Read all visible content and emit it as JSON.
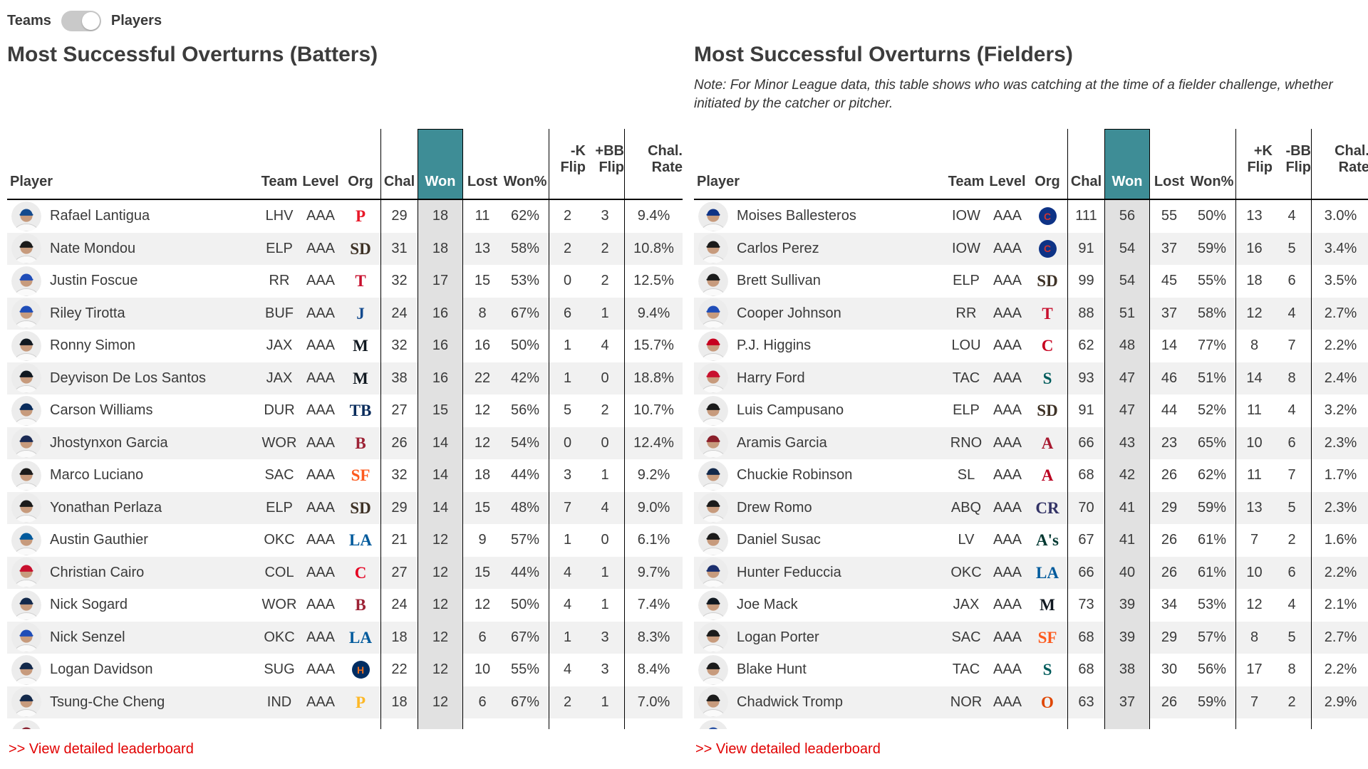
{
  "toggle": {
    "teams_label": "Teams",
    "players_label": "Players",
    "state": "Players"
  },
  "colors": {
    "accent_teal": "#3E8D96",
    "won_column_bg": "#E1E1E1",
    "row_stripe": "#F1F1F1",
    "link_red": "#E10000",
    "left_partial_row_cap": "#8A2432",
    "right_partial_row_cap": "#2D55A5"
  },
  "tables": [
    {
      "title": "Most Successful Overturns (Batters)",
      "note": "",
      "headers": {
        "player": "Player",
        "team": "Team",
        "level": "Level",
        "org": "Org",
        "chal": "Chal",
        "won": "Won",
        "lost": "Lost",
        "wonpct": "Won%",
        "f1a": "-K",
        "f1b": "Flip",
        "f2a": "+BB",
        "f2b": "Flip",
        "ratea": "Chal.",
        "rateb": "Rate"
      },
      "footer_link": ">> View detailed leaderboard",
      "partial_row_cap": "#8A2432",
      "rows": [
        {
          "player": "Rafael Lantigua",
          "team": "LHV",
          "level": "AAA",
          "org": "P",
          "org_color": "#E81828",
          "org_bg": null,
          "cap": "#134A8E",
          "chal": "29",
          "won": "18",
          "lost": "11",
          "wonpct": "62%",
          "f1": "2",
          "f2": "3",
          "rate": "9.4%"
        },
        {
          "player": "Nate Mondou",
          "team": "ELP",
          "level": "AAA",
          "org": "SD",
          "org_color": "#3E3226",
          "org_bg": null,
          "cap": "#1B1B1B",
          "chal": "31",
          "won": "18",
          "lost": "13",
          "wonpct": "58%",
          "f1": "2",
          "f2": "2",
          "rate": "10.8%"
        },
        {
          "player": "Justin Foscue",
          "team": "RR",
          "level": "AAA",
          "org": "T",
          "org_color": "#C8102E",
          "org_bg": null,
          "cap": "#1F4DB8",
          "chal": "32",
          "won": "17",
          "lost": "15",
          "wonpct": "53%",
          "f1": "0",
          "f2": "2",
          "rate": "12.5%"
        },
        {
          "player": "Riley Tirotta",
          "team": "BUF",
          "level": "AAA",
          "org": "J",
          "org_color": "#134A8E",
          "org_bg": null,
          "cap": "#1F4DB8",
          "chal": "24",
          "won": "16",
          "lost": "8",
          "wonpct": "67%",
          "f1": "6",
          "f2": "1",
          "rate": "9.4%"
        },
        {
          "player": "Ronny Simon",
          "team": "JAX",
          "level": "AAA",
          "org": "M",
          "org_color": "#101820",
          "org_bg": null,
          "cap": "#101820",
          "chal": "32",
          "won": "16",
          "lost": "16",
          "wonpct": "50%",
          "f1": "1",
          "f2": "4",
          "rate": "15.7%"
        },
        {
          "player": "Deyvison De Los Santos",
          "team": "JAX",
          "level": "AAA",
          "org": "M",
          "org_color": "#101820",
          "org_bg": null,
          "cap": "#101820",
          "chal": "38",
          "won": "16",
          "lost": "22",
          "wonpct": "42%",
          "f1": "1",
          "f2": "0",
          "rate": "18.8%"
        },
        {
          "player": "Carson Williams",
          "team": "DUR",
          "level": "AAA",
          "org": "TB",
          "org_color": "#092C5C",
          "org_bg": null,
          "cap": "#092C5C",
          "chal": "27",
          "won": "15",
          "lost": "12",
          "wonpct": "56%",
          "f1": "5",
          "f2": "2",
          "rate": "10.7%"
        },
        {
          "player": "Jhostynxon Garcia",
          "team": "WOR",
          "level": "AAA",
          "org": "B",
          "org_color": "#9D2235",
          "org_bg": null,
          "cap": "#1B2B55",
          "chal": "26",
          "won": "14",
          "lost": "12",
          "wonpct": "54%",
          "f1": "0",
          "f2": "0",
          "rate": "12.4%"
        },
        {
          "player": "Marco Luciano",
          "team": "SAC",
          "level": "AAA",
          "org": "SF",
          "org_color": "#FD5A1E",
          "org_bg": null,
          "cap": "#1B1B1B",
          "chal": "32",
          "won": "14",
          "lost": "18",
          "wonpct": "44%",
          "f1": "3",
          "f2": "1",
          "rate": "9.2%"
        },
        {
          "player": "Yonathan Perlaza",
          "team": "ELP",
          "level": "AAA",
          "org": "SD",
          "org_color": "#3E3226",
          "org_bg": null,
          "cap": "#1B1B1B",
          "chal": "29",
          "won": "14",
          "lost": "15",
          "wonpct": "48%",
          "f1": "7",
          "f2": "4",
          "rate": "9.0%"
        },
        {
          "player": "Austin Gauthier",
          "team": "OKC",
          "level": "AAA",
          "org": "LA",
          "org_color": "#005A9C",
          "org_bg": null,
          "cap": "#005A9C",
          "chal": "21",
          "won": "12",
          "lost": "9",
          "wonpct": "57%",
          "f1": "1",
          "f2": "0",
          "rate": "6.1%"
        },
        {
          "player": "Christian Cairo",
          "team": "COL",
          "level": "AAA",
          "org": "C",
          "org_color": "#E50022",
          "org_bg": null,
          "cap": "#C8102E",
          "chal": "27",
          "won": "12",
          "lost": "15",
          "wonpct": "44%",
          "f1": "4",
          "f2": "1",
          "rate": "9.7%"
        },
        {
          "player": "Nick Sogard",
          "team": "WOR",
          "level": "AAA",
          "org": "B",
          "org_color": "#9D2235",
          "org_bg": null,
          "cap": "#13294B",
          "chal": "24",
          "won": "12",
          "lost": "12",
          "wonpct": "50%",
          "f1": "4",
          "f2": "1",
          "rate": "7.4%"
        },
        {
          "player": "Nick Senzel",
          "team": "OKC",
          "level": "AAA",
          "org": "LA",
          "org_color": "#005A9C",
          "org_bg": null,
          "cap": "#1F4DB8",
          "chal": "18",
          "won": "12",
          "lost": "6",
          "wonpct": "67%",
          "f1": "1",
          "f2": "3",
          "rate": "8.3%"
        },
        {
          "player": "Logan Davidson",
          "team": "SUG",
          "level": "AAA",
          "org": "H",
          "org_color": "#EB6E1F",
          "org_bg": "#002D62",
          "cap": "#13294B",
          "chal": "22",
          "won": "12",
          "lost": "10",
          "wonpct": "55%",
          "f1": "4",
          "f2": "3",
          "rate": "8.4%"
        },
        {
          "player": "Tsung-Che Cheng",
          "team": "IND",
          "level": "AAA",
          "org": "P",
          "org_color": "#FDB827",
          "org_bg": null,
          "cap": "#13294B",
          "chal": "18",
          "won": "12",
          "lost": "6",
          "wonpct": "67%",
          "f1": "2",
          "f2": "1",
          "rate": "7.0%"
        }
      ]
    },
    {
      "title": "Most Successful Overturns (Fielders)",
      "note": "Note: For Minor League data, this table shows who was catching at the time of a fielder challenge, whether initiated by the catcher or pitcher.",
      "headers": {
        "player": "Player",
        "team": "Team",
        "level": "Level",
        "org": "Org",
        "chal": "Chal",
        "won": "Won",
        "lost": "Lost",
        "wonpct": "Won%",
        "f1a": "+K",
        "f1b": "Flip",
        "f2a": "-BB",
        "f2b": "Flip",
        "ratea": "Chal.",
        "rateb": "Rate"
      },
      "footer_link": ">> View detailed leaderboard",
      "partial_row_cap": "#2D55A5",
      "rows": [
        {
          "player": "Moises Ballesteros",
          "team": "IOW",
          "level": "AAA",
          "org": "C",
          "org_color": "#CC3433",
          "org_bg": "#0E3386",
          "cap": "#0E3386",
          "chal": "111",
          "won": "56",
          "lost": "55",
          "wonpct": "50%",
          "f1": "13",
          "f2": "4",
          "rate": "3.0%"
        },
        {
          "player": "Carlos Perez",
          "team": "IOW",
          "level": "AAA",
          "org": "C",
          "org_color": "#CC3433",
          "org_bg": "#0E3386",
          "cap": "#1B1B1B",
          "chal": "91",
          "won": "54",
          "lost": "37",
          "wonpct": "59%",
          "f1": "16",
          "f2": "5",
          "rate": "3.4%"
        },
        {
          "player": "Brett Sullivan",
          "team": "ELP",
          "level": "AAA",
          "org": "SD",
          "org_color": "#3E3226",
          "org_bg": null,
          "cap": "#1B1B1B",
          "chal": "99",
          "won": "54",
          "lost": "45",
          "wonpct": "55%",
          "f1": "18",
          "f2": "6",
          "rate": "3.5%"
        },
        {
          "player": "Cooper Johnson",
          "team": "RR",
          "level": "AAA",
          "org": "T",
          "org_color": "#C8102E",
          "org_bg": null,
          "cap": "#1F4DB8",
          "chal": "88",
          "won": "51",
          "lost": "37",
          "wonpct": "58%",
          "f1": "12",
          "f2": "4",
          "rate": "2.7%"
        },
        {
          "player": "P.J. Higgins",
          "team": "LOU",
          "level": "AAA",
          "org": "C",
          "org_color": "#C6011F",
          "org_bg": null,
          "cap": "#C6011F",
          "chal": "62",
          "won": "48",
          "lost": "14",
          "wonpct": "77%",
          "f1": "8",
          "f2": "7",
          "rate": "2.2%"
        },
        {
          "player": "Harry Ford",
          "team": "TAC",
          "level": "AAA",
          "org": "S",
          "org_color": "#005C5C",
          "org_bg": null,
          "cap": "#C8102E",
          "chal": "93",
          "won": "47",
          "lost": "46",
          "wonpct": "51%",
          "f1": "14",
          "f2": "8",
          "rate": "2.4%"
        },
        {
          "player": "Luis Campusano",
          "team": "ELP",
          "level": "AAA",
          "org": "SD",
          "org_color": "#3E3226",
          "org_bg": null,
          "cap": "#1B1B1B",
          "chal": "91",
          "won": "47",
          "lost": "44",
          "wonpct": "52%",
          "f1": "11",
          "f2": "4",
          "rate": "3.2%"
        },
        {
          "player": "Aramis Garcia",
          "team": "RNO",
          "level": "AAA",
          "org": "A",
          "org_color": "#A71930",
          "org_bg": null,
          "cap": "#8A1F2B",
          "chal": "66",
          "won": "43",
          "lost": "23",
          "wonpct": "65%",
          "f1": "10",
          "f2": "6",
          "rate": "2.3%"
        },
        {
          "player": "Chuckie Robinson",
          "team": "SL",
          "level": "AAA",
          "org": "A",
          "org_color": "#BA0021",
          "org_bg": null,
          "cap": "#13294B",
          "chal": "68",
          "won": "42",
          "lost": "26",
          "wonpct": "62%",
          "f1": "11",
          "f2": "7",
          "rate": "1.7%"
        },
        {
          "player": "Drew Romo",
          "team": "ABQ",
          "level": "AAA",
          "org": "CR",
          "org_color": "#333366",
          "org_bg": null,
          "cap": "#1B1B1B",
          "chal": "70",
          "won": "41",
          "lost": "29",
          "wonpct": "59%",
          "f1": "13",
          "f2": "5",
          "rate": "2.3%"
        },
        {
          "player": "Daniel Susac",
          "team": "LV",
          "level": "AAA",
          "org": "A's",
          "org_color": "#003831",
          "org_bg": null,
          "cap": "#1B1B1B",
          "chal": "67",
          "won": "41",
          "lost": "26",
          "wonpct": "61%",
          "f1": "7",
          "f2": "2",
          "rate": "1.6%"
        },
        {
          "player": "Hunter Feduccia",
          "team": "OKC",
          "level": "AAA",
          "org": "LA",
          "org_color": "#005A9C",
          "org_bg": null,
          "cap": "#1B2F6E",
          "chal": "66",
          "won": "40",
          "lost": "26",
          "wonpct": "61%",
          "f1": "10",
          "f2": "6",
          "rate": "2.2%"
        },
        {
          "player": "Joe Mack",
          "team": "JAX",
          "level": "AAA",
          "org": "M",
          "org_color": "#101820",
          "org_bg": null,
          "cap": "#101820",
          "chal": "73",
          "won": "39",
          "lost": "34",
          "wonpct": "53%",
          "f1": "12",
          "f2": "4",
          "rate": "2.1%"
        },
        {
          "player": "Logan Porter",
          "team": "SAC",
          "level": "AAA",
          "org": "SF",
          "org_color": "#FD5A1E",
          "org_bg": null,
          "cap": "#1B1B1B",
          "chal": "68",
          "won": "39",
          "lost": "29",
          "wonpct": "57%",
          "f1": "8",
          "f2": "5",
          "rate": "2.7%"
        },
        {
          "player": "Blake Hunt",
          "team": "TAC",
          "level": "AAA",
          "org": "S",
          "org_color": "#005C5C",
          "org_bg": null,
          "cap": "#1B1B1B",
          "chal": "68",
          "won": "38",
          "lost": "30",
          "wonpct": "56%",
          "f1": "17",
          "f2": "8",
          "rate": "2.2%"
        },
        {
          "player": "Chadwick Tromp",
          "team": "NOR",
          "level": "AAA",
          "org": "O",
          "org_color": "#DF4601",
          "org_bg": null,
          "cap": "#1B1B1B",
          "chal": "63",
          "won": "37",
          "lost": "26",
          "wonpct": "59%",
          "f1": "7",
          "f2": "2",
          "rate": "2.9%"
        }
      ]
    }
  ]
}
